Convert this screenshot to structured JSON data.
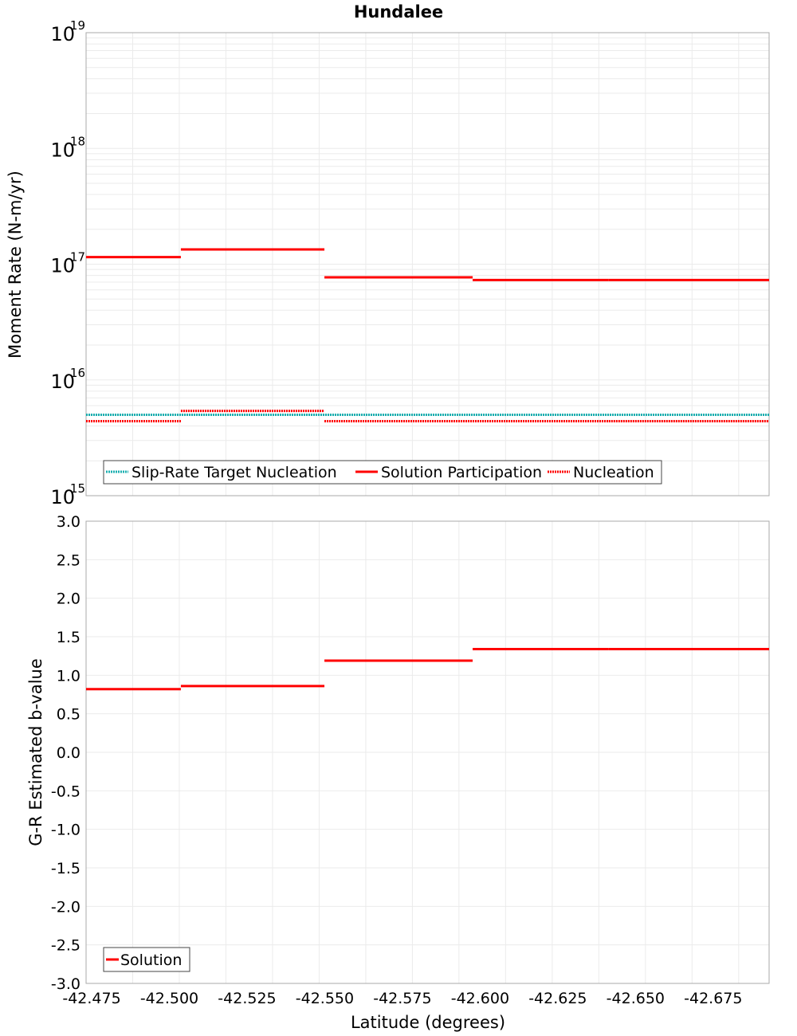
{
  "chart_data": [
    {
      "type": "line",
      "title": "Hundalee",
      "xlabel": "Latitude (degrees)",
      "ylabel": "Moment Rate (N-m/yr)",
      "yscale": "log",
      "ylim": [
        1000000000000000.0,
        1e+19
      ],
      "xlim": [
        -42.4732,
        -42.693
      ],
      "ytick_labels": [
        {
          "base": "10",
          "exp": "15",
          "v": 1000000000000000.0
        },
        {
          "base": "10",
          "exp": "16",
          "v": 1e+16
        },
        {
          "base": "10",
          "exp": "17",
          "v": 1e+17
        },
        {
          "base": "10",
          "exp": "18",
          "v": 1e+18
        },
        {
          "base": "10",
          "exp": "19",
          "v": 1e+19
        }
      ],
      "legend": {
        "placement": "bottom-left",
        "entries": [
          "Slip-Rate Target Nucleation",
          "Solution Participation",
          "Nucleation"
        ]
      },
      "series": [
        {
          "name": "Slip-Rate Target Nucleation",
          "color": "#1aafb0",
          "style": "dotted",
          "segments": [
            [
              -42.4732,
              -42.693,
              5000000000000000.0
            ]
          ]
        },
        {
          "name": "Solution Participation",
          "color": "#ff0000",
          "style": "solid",
          "segments": [
            [
              -42.4732,
              -42.5037,
              1.15e+17
            ],
            [
              -42.5037,
              -42.5499,
              1.34e+17
            ],
            [
              -42.5499,
              -42.5976,
              7.7e+16
            ],
            [
              -42.5976,
              -42.6414,
              7.3e+16
            ],
            [
              -42.6414,
              -42.693,
              7.3e+16
            ]
          ]
        },
        {
          "name": "Nucleation",
          "color": "#ff0000",
          "style": "dotted",
          "segments": [
            [
              -42.4732,
              -42.5037,
              4400000000000000.0
            ],
            [
              -42.5037,
              -42.5499,
              5400000000000000.0
            ],
            [
              -42.5499,
              -42.5976,
              4400000000000000.0
            ],
            [
              -42.5976,
              -42.6414,
              4400000000000000.0
            ],
            [
              -42.6414,
              -42.693,
              4400000000000000.0
            ]
          ]
        }
      ]
    },
    {
      "type": "line",
      "xlabel": "Latitude (degrees)",
      "ylabel": "G-R Estimated b-value",
      "ylim": [
        -3,
        3
      ],
      "xlim": [
        -42.4732,
        -42.693
      ],
      "yticks": [
        "3.0",
        "2.5",
        "2.0",
        "1.5",
        "1.0",
        "0.5",
        "0.0",
        "-0.5",
        "-1.0",
        "-1.5",
        "-2.0",
        "-2.5",
        "-3.0"
      ],
      "xticks": [
        "-42.475",
        "-42.500",
        "-42.525",
        "-42.550",
        "-42.575",
        "-42.600",
        "-42.625",
        "-42.650",
        "-42.675"
      ],
      "legend": {
        "placement": "bottom-left",
        "entries": [
          "Solution"
        ]
      },
      "series": [
        {
          "name": "Solution",
          "color": "#ff0000",
          "style": "solid",
          "segments": [
            [
              -42.4732,
              -42.5037,
              0.82
            ],
            [
              -42.5037,
              -42.5499,
              0.86
            ],
            [
              -42.5499,
              -42.5976,
              1.19
            ],
            [
              -42.5976,
              -42.6414,
              1.34
            ],
            [
              -42.6414,
              -42.693,
              1.34
            ]
          ]
        }
      ]
    }
  ]
}
